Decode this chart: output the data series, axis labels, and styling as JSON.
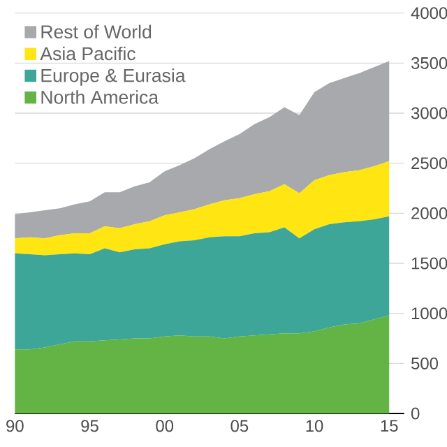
{
  "chart_data": {
    "type": "area",
    "stacked": true,
    "grid": "y",
    "legend": "top left",
    "x": [
      1990,
      1991,
      1992,
      1993,
      1994,
      1995,
      1996,
      1997,
      1998,
      1999,
      2000,
      2001,
      2002,
      2003,
      2004,
      2005,
      2006,
      2007,
      2008,
      2009,
      2010,
      2011,
      2012,
      2013,
      2014,
      2015
    ],
    "xlim": [
      1990,
      2016
    ],
    "xticks": [
      {
        "value": 1990,
        "label": "90"
      },
      {
        "value": 1995,
        "label": "95"
      },
      {
        "value": 2000,
        "label": "00"
      },
      {
        "value": 2005,
        "label": "05"
      },
      {
        "value": 2010,
        "label": "10"
      },
      {
        "value": 2015,
        "label": "15"
      }
    ],
    "ylim": [
      0,
      4000
    ],
    "yticks": [
      0,
      500,
      1000,
      1500,
      2000,
      2500,
      3000,
      3500,
      4000
    ],
    "series": [
      {
        "name": "North America",
        "color": "#63b345",
        "values": [
          640,
          640,
          660,
          690,
          720,
          720,
          730,
          740,
          750,
          750,
          770,
          780,
          770,
          770,
          750,
          770,
          780,
          790,
          800,
          800,
          820,
          860,
          890,
          900,
          940,
          980
        ]
      },
      {
        "name": "Europe & Eurasia",
        "color": "#3ea699",
        "values": [
          960,
          950,
          920,
          900,
          880,
          870,
          920,
          870,
          890,
          900,
          920,
          940,
          960,
          990,
          1020,
          1000,
          1020,
          1020,
          1060,
          950,
          1020,
          1030,
          1020,
          1020,
          1000,
          990
        ]
      },
      {
        "name": "Asia Pacific",
        "color": "#ffe511",
        "values": [
          150,
          170,
          170,
          190,
          200,
          210,
          220,
          240,
          250,
          270,
          290,
          290,
          310,
          330,
          360,
          380,
          390,
          410,
          430,
          450,
          490,
          490,
          500,
          510,
          530,
          550
        ]
      },
      {
        "name": "Rest of World",
        "color": "#a7a9ac",
        "values": [
          240,
          250,
          280,
          270,
          290,
          320,
          340,
          360,
          380,
          390,
          440,
          470,
          510,
          550,
          590,
          640,
          700,
          740,
          770,
          780,
          880,
          920,
          940,
          970,
          990,
          1000
        ]
      }
    ]
  }
}
